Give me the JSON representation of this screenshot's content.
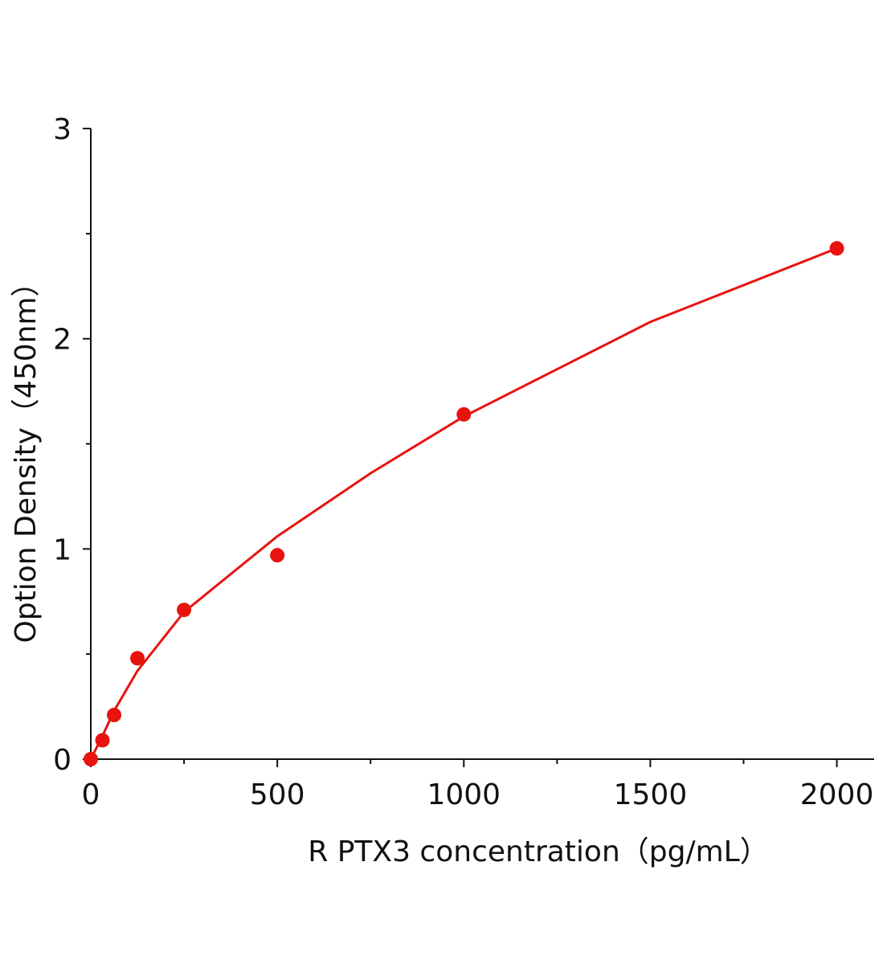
{
  "chart_data": {
    "type": "scatter",
    "y_label": "Option Density（450nm）",
    "x_label": "R PTX3 concentration（pg/mL）",
    "xlim": [
      0,
      2100
    ],
    "ylim": [
      0,
      3
    ],
    "xticks": [
      0,
      500,
      1000,
      1500,
      2000
    ],
    "yticks": [
      0,
      1,
      2,
      3
    ],
    "xticks_minor": [
      250,
      750,
      1250,
      1750
    ],
    "yticks_minor": [
      0.5,
      1.5,
      2.5
    ],
    "color": "#e8130f",
    "series": [
      {
        "x": [
          0,
          31.25,
          62.5,
          125,
          250,
          500,
          1000,
          2000
        ],
        "values": [
          0,
          0.09,
          0.21,
          0.48,
          0.71,
          0.97,
          1.64,
          2.43
        ]
      }
    ],
    "fit": {
      "x": [
        0,
        31.25,
        62.5,
        125,
        250,
        500,
        750,
        1000,
        1500,
        2000
      ],
      "values": [
        0,
        0.11,
        0.23,
        0.42,
        0.7,
        1.06,
        1.36,
        1.63,
        2.08,
        2.43
      ]
    }
  }
}
